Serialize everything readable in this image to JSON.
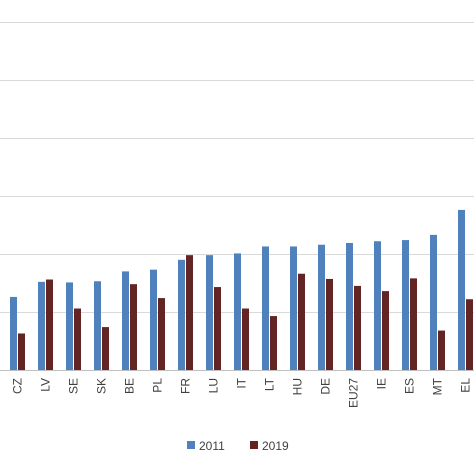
{
  "chart_data": {
    "type": "bar",
    "categories": [
      "CZ",
      "LV",
      "SE",
      "SK",
      "BE",
      "PL",
      "FR",
      "LU",
      "IT",
      "LT",
      "HU",
      "DE",
      "EU27",
      "IE",
      "ES",
      "MT",
      "EL"
    ],
    "series": [
      {
        "name": "2011",
        "color": "#4f81bd",
        "values": [
          12.6,
          15.2,
          15.1,
          15.3,
          17.0,
          17.3,
          19.0,
          19.8,
          20.1,
          21.3,
          21.3,
          21.6,
          21.9,
          22.2,
          22.4,
          23.3,
          27.6
        ]
      },
      {
        "name": "2019",
        "color": "#632523",
        "values": [
          6.3,
          15.6,
          10.6,
          7.4,
          14.8,
          12.4,
          19.8,
          14.3,
          10.6,
          9.3,
          16.6,
          15.7,
          14.5,
          13.6,
          15.8,
          6.8,
          12.2
        ]
      }
    ],
    "ylim": [
      0,
      60
    ],
    "ygrid": [
      0,
      10,
      20,
      30,
      40,
      50,
      60
    ],
    "grid": true,
    "legend": "bottom"
  }
}
